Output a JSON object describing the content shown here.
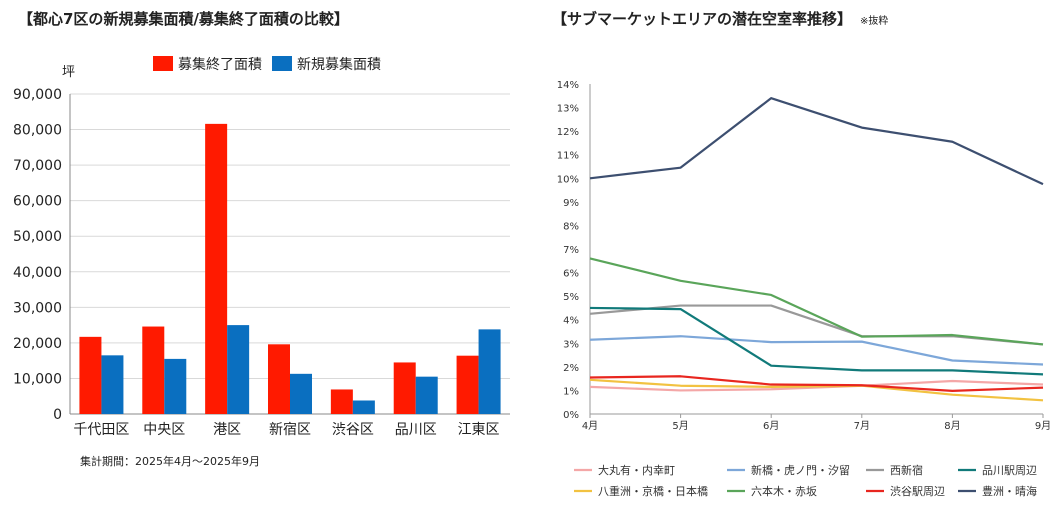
{
  "left_chart": {
    "title": "【都心7区の新規募集面積/募集終了面積の比較】",
    "unit": "坪",
    "note": "集計期間：2025年4月～2025年9月",
    "chart_data": {
      "type": "bar",
      "categories": [
        "千代田区",
        "中央区",
        "港区",
        "新宿区",
        "渋谷区",
        "品川区",
        "江東区"
      ],
      "series": [
        {
          "name": "募集終了面積",
          "color": "#ff1a00",
          "values": [
            21700,
            24600,
            81600,
            19600,
            6900,
            14500,
            16400
          ]
        },
        {
          "name": "新規募集面積",
          "color": "#0a6fc0",
          "values": [
            16500,
            15500,
            25000,
            11300,
            3800,
            10500,
            23800
          ]
        }
      ],
      "ylim": [
        0,
        90000
      ],
      "yticks": [
        "0",
        "10,000",
        "20,000",
        "30,000",
        "40,000",
        "50,000",
        "60,000",
        "70,000",
        "80,000",
        "90,000"
      ],
      "legend": "top"
    }
  },
  "right_chart": {
    "title": "【サブマーケットエリアの潜在空室率推移】",
    "subtitle": "※抜粋",
    "chart_data": {
      "type": "line",
      "x": [
        "4月",
        "5月",
        "6月",
        "7月",
        "8月",
        "9月"
      ],
      "ylim": [
        0,
        14
      ],
      "yticks": [
        "0%",
        "1%",
        "2%",
        "3%",
        "4%",
        "5%",
        "6%",
        "7%",
        "8%",
        "9%",
        "10%",
        "11%",
        "12%",
        "13%",
        "14%"
      ],
      "series": [
        {
          "name": "大丸有・内幸町",
          "color": "#f4a7a7",
          "values": [
            1.15,
            1.0,
            1.05,
            1.2,
            1.4,
            1.25
          ]
        },
        {
          "name": "新橋・虎ノ門・汐留",
          "color": "#7da7d9",
          "values": [
            3.15,
            3.3,
            3.05,
            3.07,
            2.27,
            2.1
          ]
        },
        {
          "name": "西新宿",
          "color": "#999999",
          "values": [
            4.25,
            4.6,
            4.6,
            3.3,
            3.3,
            2.95
          ]
        },
        {
          "name": "品川駅周辺",
          "color": "#117a7a",
          "values": [
            4.5,
            4.45,
            2.05,
            1.85,
            1.85,
            1.68
          ]
        },
        {
          "name": "八重洲・京橋・日本橋",
          "color": "#f2c241",
          "values": [
            1.45,
            1.2,
            1.15,
            1.2,
            0.82,
            0.58
          ]
        },
        {
          "name": "六本木・赤坂",
          "color": "#5aa55a",
          "values": [
            6.6,
            5.65,
            5.05,
            3.28,
            3.35,
            2.95
          ]
        },
        {
          "name": "渋谷駅周辺",
          "color": "#e8261f",
          "values": [
            1.55,
            1.6,
            1.25,
            1.22,
            0.98,
            1.12
          ]
        },
        {
          "name": "豊洲・晴海",
          "color": "#3d4f70",
          "values": [
            10.0,
            10.45,
            13.4,
            12.15,
            11.55,
            9.75
          ]
        }
      ],
      "legend": "bottom"
    }
  }
}
